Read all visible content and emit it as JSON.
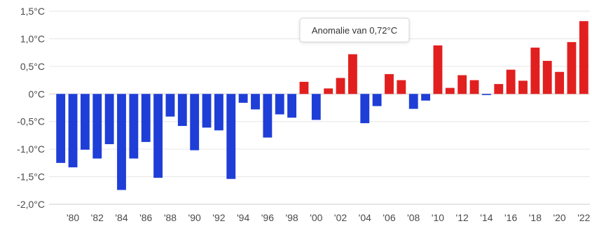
{
  "colors": {
    "negative": "#1f3ed7",
    "positive": "#e21f1f",
    "grid": "#e6e6e6"
  },
  "tooltip": {
    "text": "Anomalie van 0,72°C",
    "year": 2003
  },
  "chart_data": {
    "type": "bar",
    "title": "",
    "xlabel": "",
    "ylabel": "",
    "unit": "°C",
    "ylim": [
      -2.0,
      1.5
    ],
    "y_ticks": [
      {
        "value": 1.5,
        "label": "1,5°C"
      },
      {
        "value": 1.0,
        "label": "1,0°C"
      },
      {
        "value": 0.5,
        "label": "0,5°C"
      },
      {
        "value": 0.0,
        "label": "0°C"
      },
      {
        "value": -0.5,
        "label": "-0,5°C"
      },
      {
        "value": -1.0,
        "label": "-1,0°C"
      },
      {
        "value": -1.5,
        "label": "-1,5°C"
      },
      {
        "value": -2.0,
        "label": "-2,0°C"
      }
    ],
    "x_ticks": [
      {
        "year": 1980,
        "label": "'80"
      },
      {
        "year": 1982,
        "label": "'82"
      },
      {
        "year": 1984,
        "label": "'84"
      },
      {
        "year": 1986,
        "label": "'86"
      },
      {
        "year": 1988,
        "label": "'88"
      },
      {
        "year": 1990,
        "label": "'90"
      },
      {
        "year": 1992,
        "label": "'92"
      },
      {
        "year": 1994,
        "label": "'94"
      },
      {
        "year": 1996,
        "label": "'96"
      },
      {
        "year": 1998,
        "label": "'98"
      },
      {
        "year": 2000,
        "label": "'00"
      },
      {
        "year": 2002,
        "label": "'02"
      },
      {
        "year": 2004,
        "label": "'04"
      },
      {
        "year": 2006,
        "label": "'06"
      },
      {
        "year": 2008,
        "label": "'08"
      },
      {
        "year": 2010,
        "label": "'10"
      },
      {
        "year": 2012,
        "label": "'12"
      },
      {
        "year": 2014,
        "label": "'14"
      },
      {
        "year": 2016,
        "label": "'16"
      },
      {
        "year": 2018,
        "label": "'18"
      },
      {
        "year": 2020,
        "label": "'20"
      },
      {
        "year": 2022,
        "label": "'22"
      }
    ],
    "categories": [
      1979,
      1980,
      1981,
      1982,
      1983,
      1984,
      1985,
      1986,
      1987,
      1988,
      1989,
      1990,
      1991,
      1992,
      1993,
      1994,
      1995,
      1996,
      1997,
      1998,
      1999,
      2000,
      2001,
      2002,
      2003,
      2004,
      2005,
      2006,
      2007,
      2008,
      2009,
      2010,
      2011,
      2012,
      2013,
      2014,
      2015,
      2016,
      2017,
      2018,
      2019,
      2020,
      2021,
      2022
    ],
    "values": [
      -1.25,
      -1.33,
      -1.01,
      -1.17,
      -0.91,
      -1.74,
      -1.17,
      -0.87,
      -1.52,
      -0.41,
      -0.58,
      -1.02,
      -0.61,
      -0.66,
      -1.54,
      -0.16,
      -0.28,
      -0.79,
      -0.37,
      -0.43,
      0.22,
      -0.47,
      0.1,
      0.29,
      0.72,
      -0.53,
      -0.22,
      0.36,
      0.25,
      -0.27,
      -0.12,
      0.88,
      0.11,
      0.34,
      0.25,
      -0.02,
      0.18,
      0.44,
      0.24,
      0.84,
      0.6,
      0.4,
      0.94,
      1.32
    ]
  }
}
